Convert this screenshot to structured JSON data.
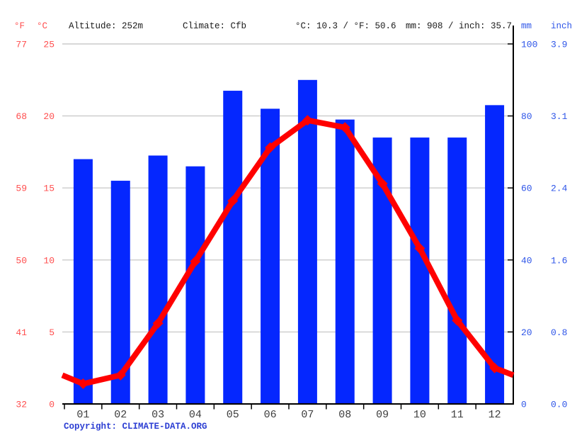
{
  "header": {
    "f_unit": "°F",
    "c_unit": "°C",
    "altitude": "Altitude: 252m",
    "climate": "Climate: Cfb",
    "temp_summary": "°C: 10.3 / °F: 50.6",
    "precip_summary": "mm: 908 / inch: 35.7",
    "mm_unit": "mm",
    "inch_unit": "inch"
  },
  "axes": {
    "left_f_ticks": [
      "77",
      "68",
      "59",
      "50",
      "41",
      "32"
    ],
    "left_c_ticks": [
      "25",
      "20",
      "15",
      "10",
      "5",
      "0"
    ],
    "right_mm_ticks": [
      "100",
      "80",
      "60",
      "40",
      "20",
      "0"
    ],
    "right_inch_ticks": [
      "3.9",
      "3.1",
      "2.4",
      "1.6",
      "0.8",
      "0.0"
    ]
  },
  "chart_data": {
    "type": "bar",
    "subtype": "climate-combo-bar-line",
    "categories": [
      "01",
      "02",
      "03",
      "04",
      "05",
      "06",
      "07",
      "08",
      "09",
      "10",
      "11",
      "12"
    ],
    "series": [
      {
        "name": "precipitation_mm",
        "type": "bar",
        "values": [
          68,
          62,
          69,
          66,
          87,
          82,
          90,
          79,
          74,
          74,
          74,
          83
        ],
        "total_mm": 908,
        "total_inch": 35.7
      },
      {
        "name": "temperature_c",
        "type": "line",
        "values": [
          1.4,
          2.0,
          5.6,
          9.9,
          14.1,
          17.8,
          19.7,
          19.2,
          15.3,
          10.8,
          5.8,
          2.5
        ],
        "edge_start": 2.0,
        "edge_end": 2.0,
        "annual_mean_c": 10.3,
        "annual_mean_f": 50.6
      }
    ],
    "ylim_temp_c": [
      0,
      25
    ],
    "ylim_precip_mm": [
      0,
      100
    ],
    "grid": true,
    "legend_position": "none"
  },
  "colors": {
    "bar_blue": "#0527fe",
    "line_red": "#ff0000",
    "axis_label_red": "#ff4d4d",
    "axis_label_blue": "#2e55e8",
    "month_label": "#3d3d3d",
    "grid_gray": "#cbcbcb",
    "axis_black": "#000000"
  },
  "copyright": "Copyright: CLIMATE-DATA.ORG"
}
